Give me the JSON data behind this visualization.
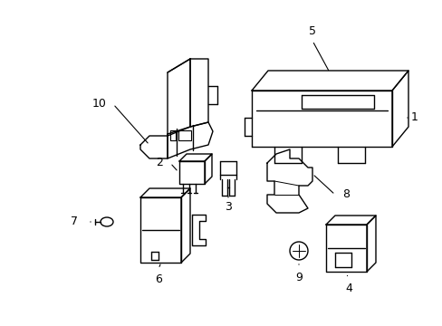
{
  "background_color": "#ffffff",
  "line_color": "#000000",
  "lw": 1.0,
  "figsize": [
    4.89,
    3.6
  ],
  "dpi": 100
}
